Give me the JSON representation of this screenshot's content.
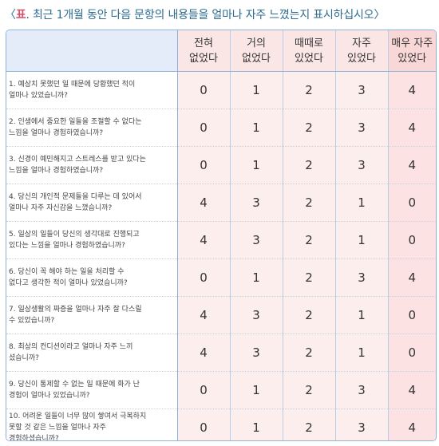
{
  "title": {
    "bracket_open": "〈",
    "highlight": "표",
    "text": ". 최근 1개월 동안 다음 문항의 내용들을 얼마나 자주 느꼈는지 표시하십시오",
    "bracket_close": "〉"
  },
  "columns": [
    "전혀\n없었다",
    "거의\n없었다",
    "때때로\n있었다",
    "자주\n있었다",
    "매우 자주\n있었다"
  ],
  "rows": [
    {
      "question": "1. 예상치 못했던 일 때문에 당황했던 적이\n얼마나 있었습니까?",
      "scores": [
        "0",
        "1",
        "2",
        "3",
        "4"
      ]
    },
    {
      "question": "2. 인생에서 중요한 일들을 조절할 수 없다는\n느낌을 얼마나 경험하였습니까?",
      "scores": [
        "0",
        "1",
        "2",
        "3",
        "4"
      ]
    },
    {
      "question": "3. 신경이 예민해지고 스트레스를 받고 있다는\n느낌을 얼마나 경험하였습니까?",
      "scores": [
        "0",
        "1",
        "2",
        "3",
        "4"
      ]
    },
    {
      "question": "4. 당신의 개인적 문제들을 다루는 데 있어서\n얼마나 자주 자신감을 느꼈습니까?",
      "scores": [
        "4",
        "3",
        "2",
        "1",
        "0"
      ]
    },
    {
      "question": "5. 일상의 일들이 당신의 생각대로 진행되고\n있다는 느낌을 얼마나 경험하였습니까?",
      "scores": [
        "4",
        "3",
        "2",
        "1",
        "0"
      ]
    },
    {
      "question": "6. 당신이 꼭 해야 하는 일을 처리할 수\n없다고 생각한 적이 얼마나 있었습니까?",
      "scores": [
        "0",
        "1",
        "2",
        "3",
        "4"
      ]
    },
    {
      "question": "7. 일상생활의 짜증을 얼마나 자주 잘 다스릴\n수 있었습니까?",
      "scores": [
        "4",
        "3",
        "2",
        "1",
        "0"
      ]
    },
    {
      "question": "8. 최상의 컨디션이라고 얼마나 자주 느끼\n셨습니까?",
      "scores": [
        "4",
        "3",
        "2",
        "1",
        "0"
      ]
    },
    {
      "question": "9. 당신이 통제할 수 없는 일 때문에 화가 난\n경험이 얼마나 있었습니까?",
      "scores": [
        "0",
        "1",
        "2",
        "3",
        "4"
      ]
    },
    {
      "question": "10. 어려운 일들이 너무 많이 쌓여서 극복하지\n못할 것 같은 느낌을 얼마나 자주\n경험하셨습니까?",
      "scores": [
        "0",
        "1",
        "2",
        "3",
        "4"
      ]
    }
  ]
}
